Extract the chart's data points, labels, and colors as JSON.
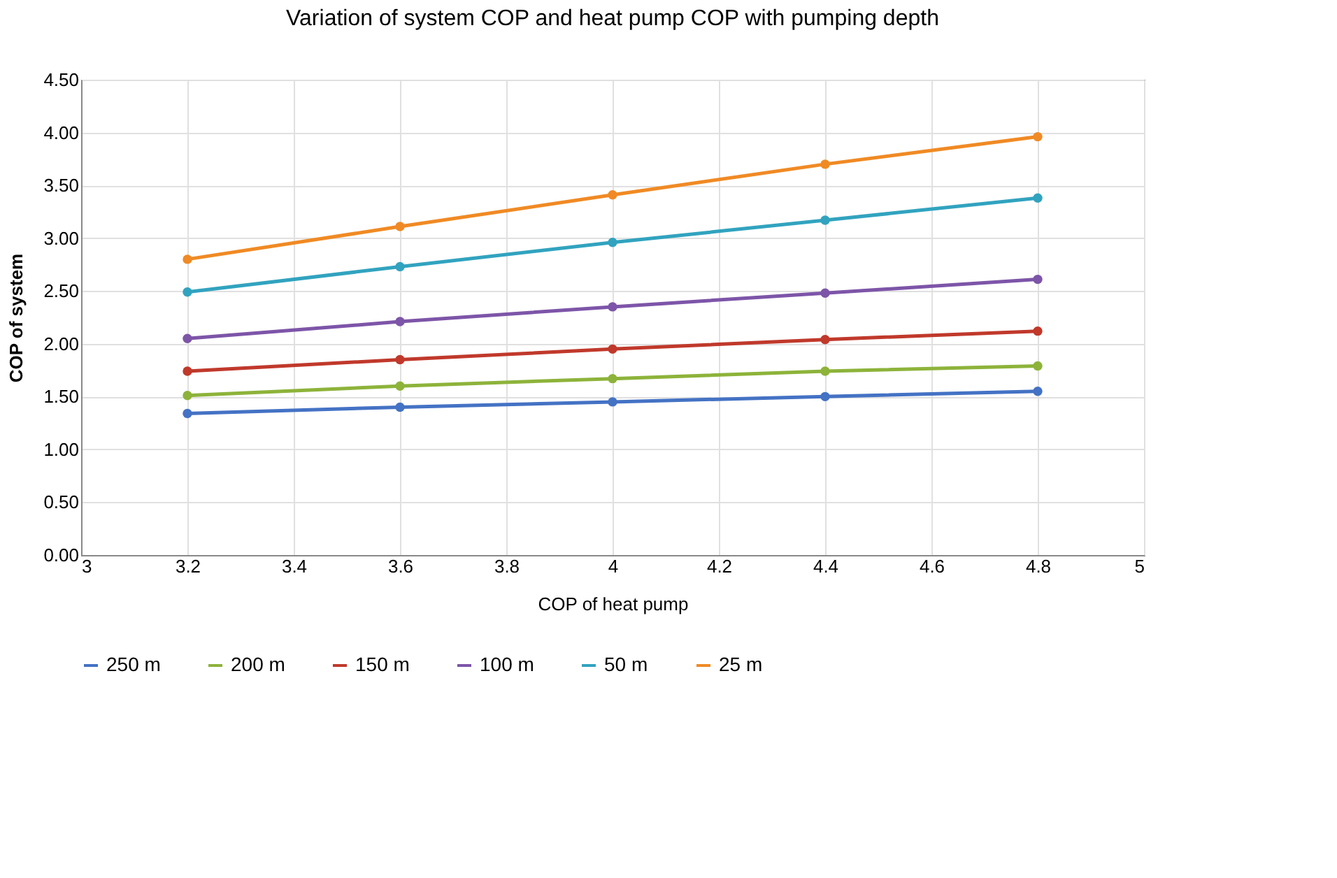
{
  "chart_data": {
    "type": "line",
    "title": "Variation of  system COP and heat pump COP with pumping depth",
    "xlabel": "COP of heat pump",
    "ylabel": "COP of system",
    "x": [
      3.2,
      3.6,
      4.0,
      4.4,
      4.8
    ],
    "series": [
      {
        "name": "250 m",
        "color": "#4472c4",
        "values": [
          1.34,
          1.4,
          1.45,
          1.5,
          1.55
        ]
      },
      {
        "name": "200 m",
        "color": "#8db33a",
        "values": [
          1.51,
          1.6,
          1.67,
          1.74,
          1.79
        ]
      },
      {
        "name": "150 m",
        "color": "#c0392b",
        "values": [
          1.74,
          1.85,
          1.95,
          2.04,
          2.12
        ]
      },
      {
        "name": "100 m",
        "color": "#7d55a8",
        "values": [
          2.05,
          2.21,
          2.35,
          2.48,
          2.61
        ]
      },
      {
        "name": "50 m",
        "color": "#31a3bf",
        "values": [
          2.49,
          2.73,
          2.96,
          3.17,
          3.38
        ]
      },
      {
        "name": "25 m",
        "color": "#f08a24",
        "values": [
          2.8,
          3.11,
          3.41,
          3.7,
          3.96
        ]
      }
    ],
    "xlim": [
      3,
      5
    ],
    "xticks": [
      3,
      3.2,
      3.4,
      3.6,
      3.8,
      4,
      4.2,
      4.4,
      4.6,
      4.8,
      5
    ],
    "ylim": [
      0,
      4.5
    ],
    "yticks": [
      {
        "value": 0,
        "label": "0.00"
      },
      {
        "value": 0.5,
        "label": "0.50"
      },
      {
        "value": 1,
        "label": "1.00"
      },
      {
        "value": 1.5,
        "label": "1.50"
      },
      {
        "value": 2,
        "label": "2.00"
      },
      {
        "value": 2.5,
        "label": "2.50"
      },
      {
        "value": 3,
        "label": "3.00"
      },
      {
        "value": 3.5,
        "label": "3.50"
      },
      {
        "value": 4,
        "label": "4.00"
      },
      {
        "value": 4.5,
        "label": "4.50"
      }
    ],
    "grid": true,
    "legend": "bottom",
    "marker": "circle",
    "line_style": "solid"
  }
}
